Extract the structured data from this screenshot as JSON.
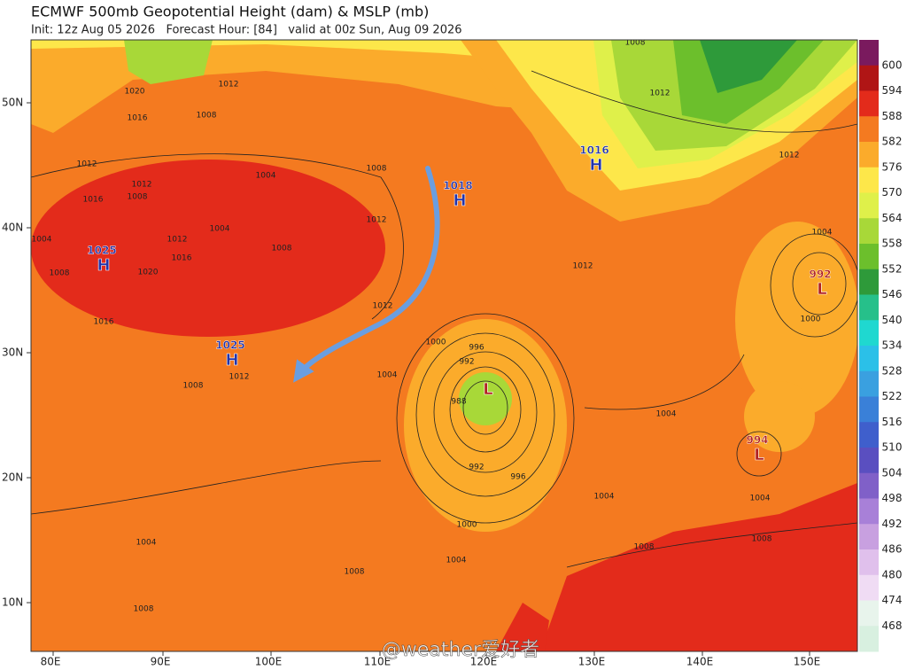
{
  "header": {
    "title": "ECMWF 500mb Geopotential Height (dam) & MSLP (mb)",
    "subtitle": "Init: 12z Aug 05 2026   Forecast Hour: [84]   valid at 00z Sun, Aug 09 2026"
  },
  "axes": {
    "lat_labels": [
      "50N",
      "40N",
      "30N",
      "20N",
      "10N"
    ],
    "lon_labels": [
      "80E",
      "90E",
      "100E",
      "110E",
      "120E",
      "130E",
      "140E",
      "150E"
    ]
  },
  "colorbar": {
    "levels": [
      600,
      594,
      588,
      582,
      576,
      570,
      564,
      558,
      552,
      546,
      540,
      534,
      528,
      522,
      516,
      510,
      504,
      498,
      492,
      486,
      480,
      474,
      468
    ],
    "colors": [
      "#7a1a5e",
      "#b01515",
      "#e32b1b",
      "#f47a20",
      "#fbab2b",
      "#fde74a",
      "#dff04a",
      "#a8d838",
      "#6cbf2c",
      "#2e9a3a",
      "#26c08a",
      "#1fd8d0",
      "#2bc0e8",
      "#3aa0e0",
      "#3a80d8",
      "#3f5fcc",
      "#5a4fc0",
      "#8060c8",
      "#a880d8",
      "#c8a0e0",
      "#e0c0ec",
      "#f0dcf4",
      "#e8f4ec",
      "#d8f0e0"
    ]
  },
  "pressure_centers": [
    {
      "letter": "H",
      "value": 1025
    },
    {
      "letter": "H",
      "value": 1025
    },
    {
      "letter": "H",
      "value": 1018
    },
    {
      "letter": "H",
      "value": 1016
    },
    {
      "letter": "L",
      "value": 992
    },
    {
      "letter": "L",
      "value": 994
    },
    {
      "letter": "L"
    }
  ],
  "isobar_labels": [
    1020,
    1016,
    1008,
    1012,
    1012,
    1004,
    1016,
    1012,
    1008,
    1012,
    1004,
    1016,
    1008,
    1020,
    1004,
    1008,
    1016,
    1012,
    1008,
    1012,
    1012,
    1004,
    1000,
    996,
    992,
    988,
    992,
    996,
    1000,
    1004,
    1004,
    1004,
    1004,
    1008,
    1008,
    1008,
    1004,
    1004,
    1000,
    1008,
    1012,
    1012,
    1012,
    1008,
    1008
  ],
  "watermark": "@weather爱好者"
}
